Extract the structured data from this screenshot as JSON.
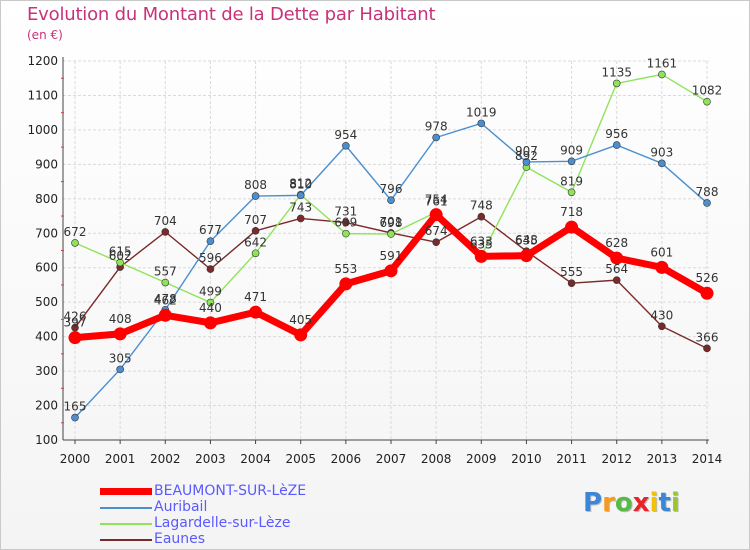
{
  "title": "Evolution du Montant de la Dette par Habitant",
  "subtitle": "(en €)",
  "logo": {
    "letters": [
      "P",
      "r",
      "o",
      "x",
      "i",
      "t",
      "i"
    ],
    "colors": [
      "#3a86d8",
      "#f59a1e",
      "#57b947",
      "#e8232a",
      "#f4c200",
      "#3a86d8",
      "#9bc531"
    ]
  },
  "chart_data": {
    "type": "line",
    "title": "Evolution du Montant de la Dette par Habitant",
    "ylabel": "(en €)",
    "xlabel": "",
    "x": [
      "2000",
      "2001",
      "2002",
      "2003",
      "2004",
      "2005",
      "2006",
      "2007",
      "2008",
      "2009",
      "2010",
      "2011",
      "2012",
      "2013",
      "2014"
    ],
    "ylim": [
      100,
      1200
    ],
    "yticks": [
      100,
      200,
      300,
      400,
      500,
      600,
      700,
      800,
      900,
      1000,
      1100,
      1200
    ],
    "grid": true,
    "legend": "bottom-left",
    "series": [
      {
        "name": "BEAUMONT-SUR-LèZE",
        "color": "#ff0000",
        "values": [
          397,
          408,
          462,
          440,
          471,
          405,
          553,
          591,
          754,
          633,
          635,
          718,
          628,
          601,
          526
        ],
        "labels": [
          "397",
          "408",
          "462",
          "440",
          "471",
          "405",
          "553",
          "591",
          "754",
          "633",
          "635",
          "718",
          "628",
          "601",
          "526"
        ]
      },
      {
        "name": "Auribail",
        "color": "#4b8fd0",
        "values": [
          165,
          305,
          478,
          677,
          808,
          810,
          954,
          796,
          978,
          1019,
          907,
          909,
          956,
          903,
          788
        ],
        "labels": [
          "165",
          "305",
          "478",
          "677",
          "808",
          "810",
          "954",
          "796",
          "978",
          "1019",
          "907",
          "909",
          "956",
          "903",
          "788"
        ]
      },
      {
        "name": "Lagardelle-sur-Lèze",
        "color": "#8fe35a",
        "values": [
          672,
          615,
          557,
          499,
          642,
          812,
          699,
          698,
          761,
          635,
          892,
          819,
          1135,
          1161,
          1082
        ],
        "labels": [
          "672",
          "615",
          "557",
          "499",
          "642",
          "812",
          "699",
          "698",
          "761",
          "635",
          "892",
          "819",
          "1135",
          "1161",
          "1082"
        ]
      },
      {
        "name": "Eaunes",
        "color": "#7a2a2a",
        "values": [
          426,
          602,
          704,
          596,
          707,
          743,
          731,
          701,
          674,
          748,
          648,
          555,
          564,
          430,
          366
        ],
        "labels": [
          "426",
          "602",
          "704",
          "596",
          "707",
          "743",
          "731",
          "701",
          "674",
          "748",
          "648",
          "555",
          "564",
          "430",
          "366"
        ]
      }
    ]
  }
}
